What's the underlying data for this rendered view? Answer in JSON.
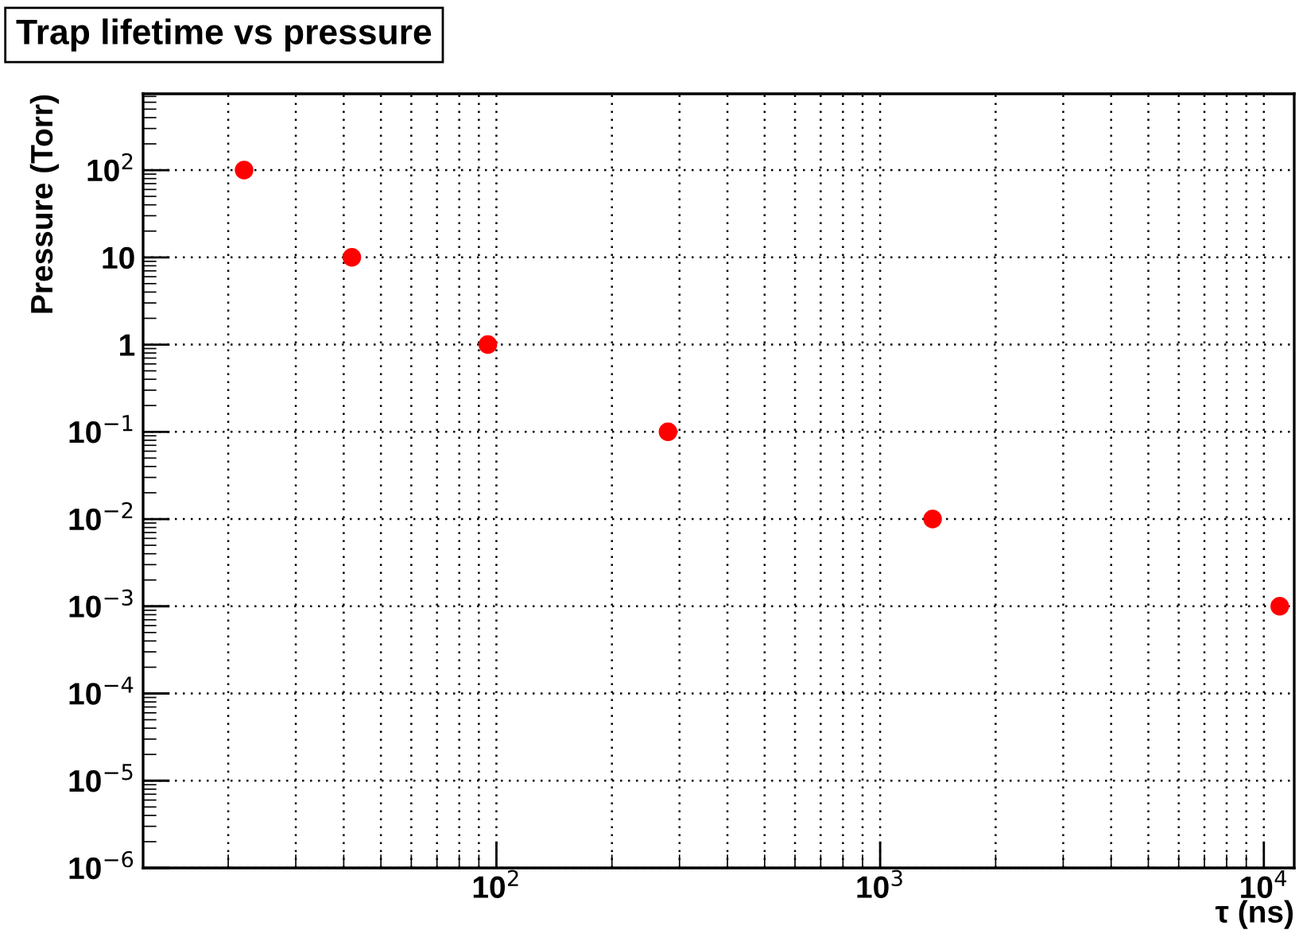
{
  "chart_data": {
    "type": "scatter",
    "title": "Trap lifetime vs pressure",
    "xlabel": "τ (ns)",
    "ylabel": "Pressure (Torr)",
    "x": [
      22,
      42,
      95,
      280,
      1370,
      11000
    ],
    "series": [
      {
        "color": "#ff0000",
        "values": [
          100,
          10,
          1,
          0.1,
          0.01,
          0.001
        ]
      }
    ],
    "log": "xy",
    "xlim": [
      12,
      12000
    ],
    "ylim": [
      1e-06,
      750
    ],
    "xticks": [
      {
        "value": 100,
        "label": "10$^{2}$"
      },
      {
        "value": 1000,
        "label": "10$^{3}$"
      },
      {
        "value": 10000,
        "label": "10$^{4}$"
      }
    ],
    "yticks": [
      {
        "value": 1e-06,
        "label": "10$^{−6}$"
      },
      {
        "value": 1e-05,
        "label": "10$^{−5}$"
      },
      {
        "value": 0.0001,
        "label": "10$^{−4}$"
      },
      {
        "value": 0.001,
        "label": "10$^{−3}$"
      },
      {
        "value": 0.01,
        "label": "10$^{−2}$"
      },
      {
        "value": 0.1,
        "label": "10$^{−1}$"
      },
      {
        "value": 1,
        "label": "1"
      },
      {
        "value": 10,
        "label": "10"
      },
      {
        "value": 100,
        "label": "10$^{2}$"
      }
    ],
    "grid": true,
    "marker": "circle"
  }
}
